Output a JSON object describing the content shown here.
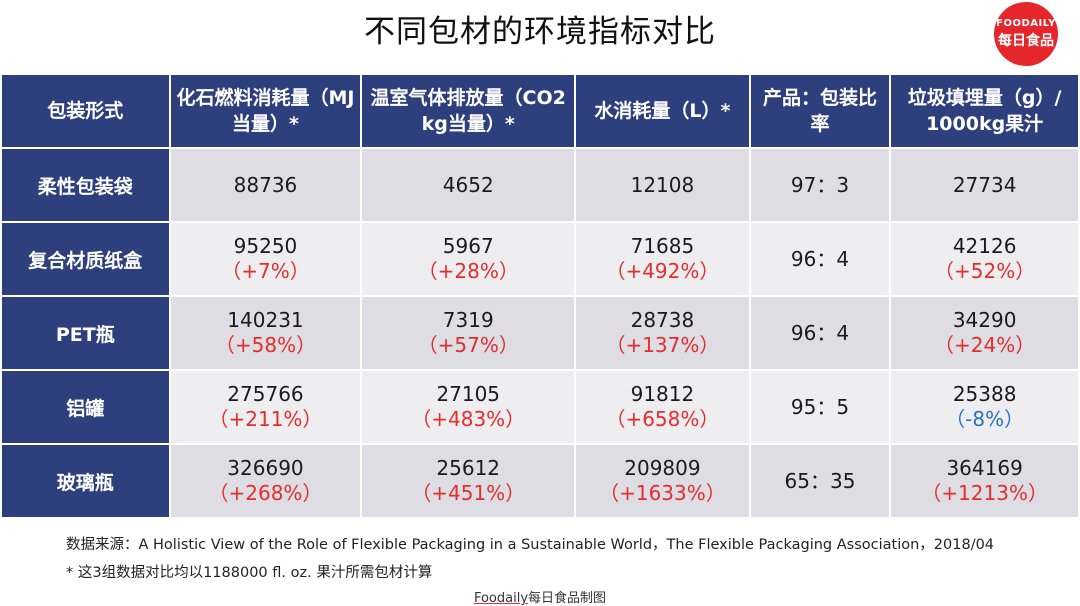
{
  "title": "不同包材的环境指标对比",
  "logo": {
    "line1": "FOODAILY",
    "line2": "每日食品"
  },
  "chart_data": {
    "type": "table",
    "columns": [
      "包装形式",
      "化石燃料消耗量（MJ当量）*",
      "温室气体排放量（CO2 kg当量）*",
      "水消耗量（L）*",
      "产品：包装比率",
      "垃圾填埋量（g）/ 1000kg果汁"
    ],
    "rows": [
      {
        "label": "柔性包装袋",
        "cells": [
          {
            "value": "88736",
            "change": ""
          },
          {
            "value": "4652",
            "change": ""
          },
          {
            "value": "12108",
            "change": ""
          },
          {
            "value": "97：3",
            "change": ""
          },
          {
            "value": "27734",
            "change": ""
          }
        ]
      },
      {
        "label": "复合材质纸盒",
        "cells": [
          {
            "value": "95250",
            "change": "（+7%）"
          },
          {
            "value": "5967",
            "change": "（+28%）"
          },
          {
            "value": "71685",
            "change": "（+492%）"
          },
          {
            "value": "96：4",
            "change": ""
          },
          {
            "value": "42126",
            "change": "（+52%）"
          }
        ]
      },
      {
        "label": "PET瓶",
        "cells": [
          {
            "value": "140231",
            "change": "（+58%）"
          },
          {
            "value": "7319",
            "change": "（+57%）"
          },
          {
            "value": "28738",
            "change": "（+137%）"
          },
          {
            "value": "96：4",
            "change": ""
          },
          {
            "value": "34290",
            "change": "（+24%）"
          }
        ]
      },
      {
        "label": "铝罐",
        "cells": [
          {
            "value": "275766",
            "change": "（+211%）"
          },
          {
            "value": "27105",
            "change": "（+483%）"
          },
          {
            "value": "91812",
            "change": "（+658%）"
          },
          {
            "value": "95：5",
            "change": ""
          },
          {
            "value": "25388",
            "change": "（-8%）"
          }
        ]
      },
      {
        "label": "玻璃瓶",
        "cells": [
          {
            "value": "326690",
            "change": "（+268%）"
          },
          {
            "value": "25612",
            "change": "（+451%）"
          },
          {
            "value": "209809",
            "change": "（+1633%）"
          },
          {
            "value": "65：35",
            "change": ""
          },
          {
            "value": "364169",
            "change": "（+1213%）"
          }
        ]
      }
    ],
    "colors": {
      "header_bg": "#2e3f7e",
      "increase": "#e52d2d",
      "decrease": "#2a73c4"
    }
  },
  "source": "数据来源：A Holistic View of the Role of Flexible Packaging in a Sustainable World，The Flexible Packaging Association，2018/04",
  "note": "* 这3组数据对比均以1188000 fl. oz. 果汁所需包材计算",
  "credit": {
    "brand": "Foodaily",
    "suffix": "每日食品制图"
  }
}
